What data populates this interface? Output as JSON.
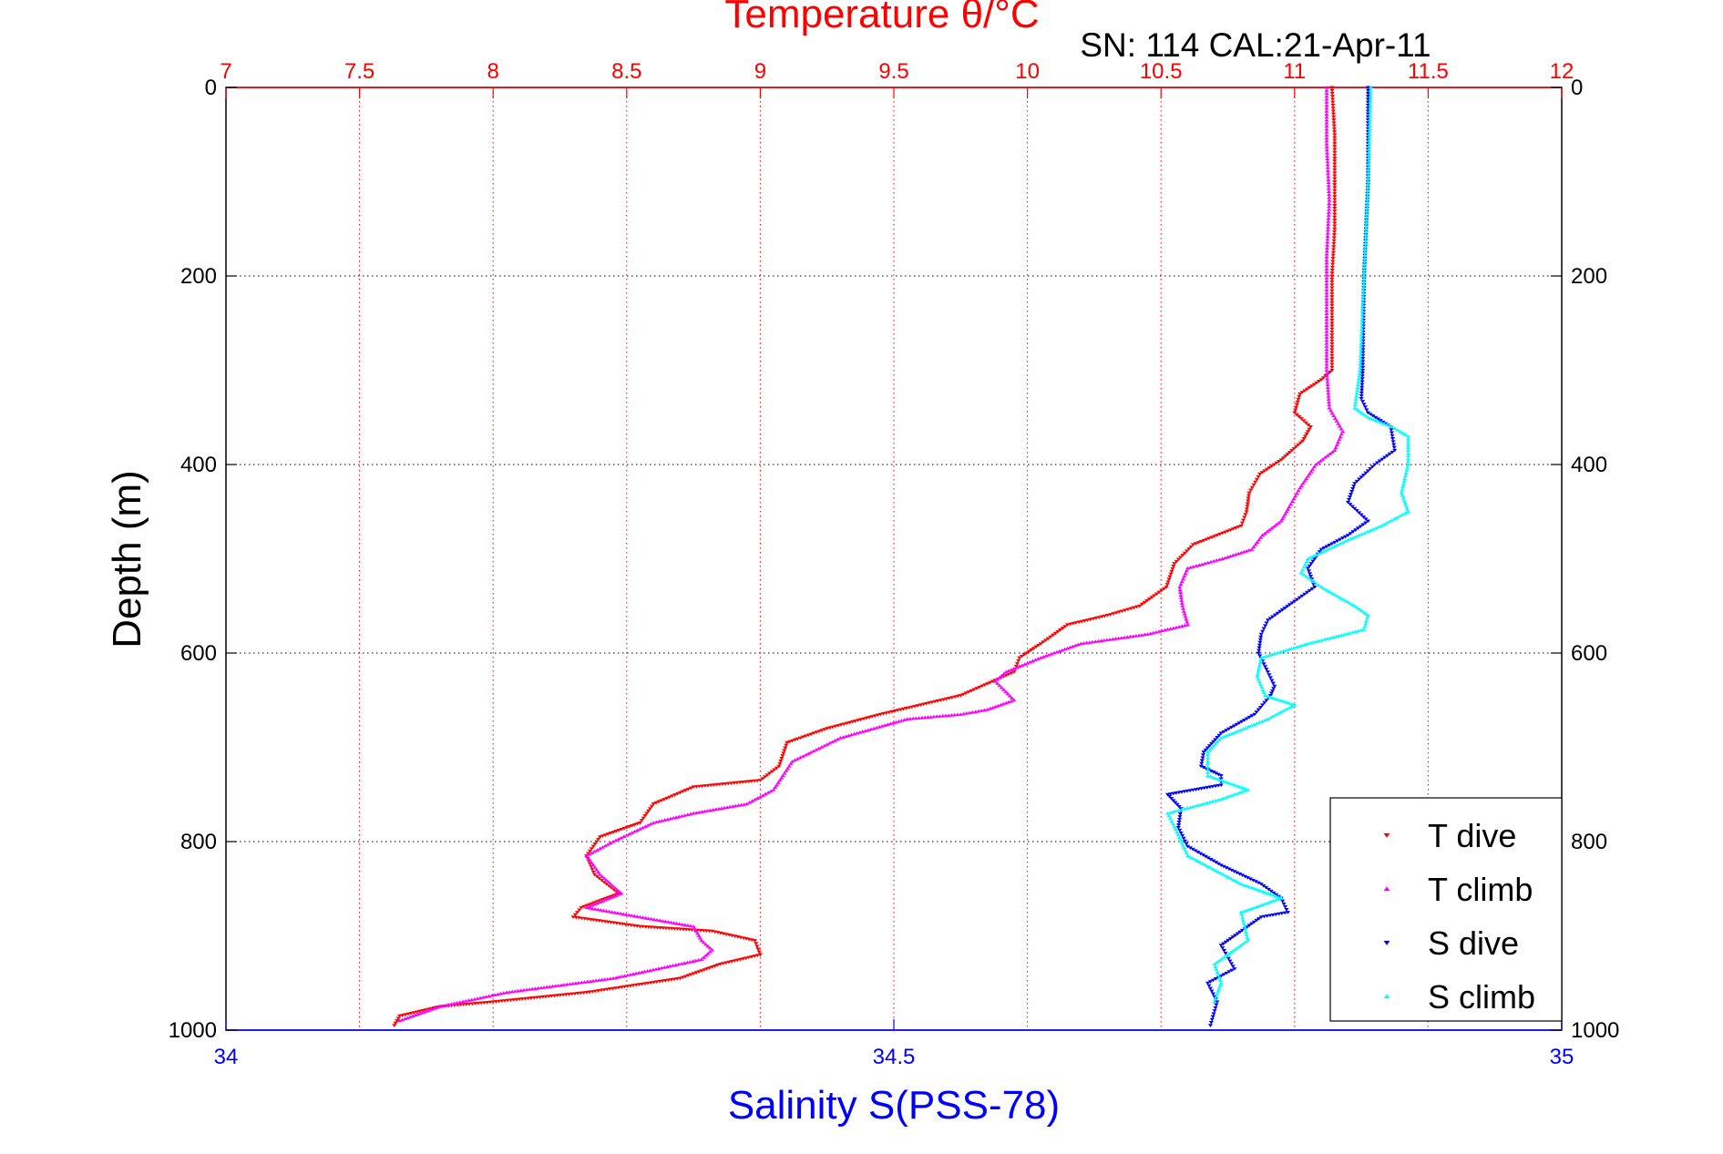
{
  "chart_data": {
    "type": "scatter",
    "title": "Temperature θ/°C",
    "subtitle": "SN: 114  CAL:21-Apr-11",
    "ylabel": "Depth (m)",
    "xlabel": "Salinity S(PSS-78)",
    "grid": true,
    "legend_position": "bottom-right",
    "y_axis": {
      "reversed": true,
      "ylim": [
        0,
        1000
      ],
      "ticks": [
        0,
        200,
        400,
        600,
        800,
        1000
      ],
      "tick_labels": [
        "0",
        "200",
        "400",
        "600",
        "800",
        "1000"
      ]
    },
    "temperature_axis": {
      "position": "top",
      "color": "#ff0000",
      "xlim": [
        7,
        12
      ],
      "ticks": [
        7,
        7.5,
        8,
        8.5,
        9,
        9.5,
        10,
        10.5,
        11,
        11.5,
        12
      ],
      "tick_labels": [
        "7",
        "7.5",
        "8",
        "8.5",
        "9",
        "9.5",
        "10",
        "10.5",
        "11",
        "11.5",
        "12"
      ]
    },
    "salinity_axis": {
      "position": "bottom",
      "color": "#0000ff",
      "xlim": [
        34,
        35
      ],
      "ticks": [
        34,
        34.5,
        35
      ],
      "tick_labels": [
        "34",
        "34.5",
        "35"
      ]
    },
    "series": [
      {
        "name": "T dive",
        "axis": "temperature",
        "color": "#ff0000",
        "marker": "triangle-down",
        "points": [
          [
            11.14,
            0
          ],
          [
            11.15,
            50
          ],
          [
            11.15,
            100
          ],
          [
            11.15,
            150
          ],
          [
            11.14,
            200
          ],
          [
            11.14,
            250
          ],
          [
            11.14,
            300
          ],
          [
            11.1,
            310
          ],
          [
            11.02,
            325
          ],
          [
            11.0,
            345
          ],
          [
            11.06,
            360
          ],
          [
            11.03,
            375
          ],
          [
            10.95,
            395
          ],
          [
            10.87,
            410
          ],
          [
            10.83,
            430
          ],
          [
            10.82,
            450
          ],
          [
            10.8,
            465
          ],
          [
            10.62,
            485
          ],
          [
            10.55,
            505
          ],
          [
            10.52,
            530
          ],
          [
            10.42,
            550
          ],
          [
            10.3,
            560
          ],
          [
            10.15,
            570
          ],
          [
            10.05,
            590
          ],
          [
            9.97,
            605
          ],
          [
            9.95,
            620
          ],
          [
            9.75,
            645
          ],
          [
            9.45,
            665
          ],
          [
            9.25,
            680
          ],
          [
            9.1,
            695
          ],
          [
            9.07,
            720
          ],
          [
            9.0,
            735
          ],
          [
            8.75,
            742
          ],
          [
            8.6,
            760
          ],
          [
            8.55,
            780
          ],
          [
            8.4,
            795
          ],
          [
            8.35,
            815
          ],
          [
            8.38,
            835
          ],
          [
            8.47,
            855
          ],
          [
            8.33,
            870
          ],
          [
            8.3,
            880
          ],
          [
            8.55,
            890
          ],
          [
            8.82,
            895
          ],
          [
            8.98,
            905
          ],
          [
            9.0,
            920
          ],
          [
            8.85,
            930
          ],
          [
            8.7,
            945
          ],
          [
            8.35,
            960
          ],
          [
            8.0,
            970
          ],
          [
            7.8,
            975
          ],
          [
            7.65,
            985
          ],
          [
            7.63,
            995
          ]
        ]
      },
      {
        "name": "T climb",
        "axis": "temperature",
        "color": "#ff00ff",
        "marker": "triangle-up",
        "points": [
          [
            11.12,
            0
          ],
          [
            11.12,
            60
          ],
          [
            11.13,
            120
          ],
          [
            11.12,
            180
          ],
          [
            11.12,
            240
          ],
          [
            11.12,
            300
          ],
          [
            11.13,
            340
          ],
          [
            11.18,
            365
          ],
          [
            11.15,
            385
          ],
          [
            11.08,
            400
          ],
          [
            11.02,
            425
          ],
          [
            10.98,
            445
          ],
          [
            10.95,
            460
          ],
          [
            10.88,
            475
          ],
          [
            10.84,
            490
          ],
          [
            10.73,
            500
          ],
          [
            10.6,
            510
          ],
          [
            10.57,
            530
          ],
          [
            10.58,
            550
          ],
          [
            10.6,
            570
          ],
          [
            10.45,
            580
          ],
          [
            10.2,
            590
          ],
          [
            10.05,
            605
          ],
          [
            9.92,
            620
          ],
          [
            9.88,
            630
          ],
          [
            9.95,
            650
          ],
          [
            9.85,
            660
          ],
          [
            9.75,
            665
          ],
          [
            9.55,
            670
          ],
          [
            9.3,
            690
          ],
          [
            9.12,
            715
          ],
          [
            9.05,
            745
          ],
          [
            8.95,
            760
          ],
          [
            8.75,
            770
          ],
          [
            8.6,
            780
          ],
          [
            8.45,
            800
          ],
          [
            8.35,
            815
          ],
          [
            8.4,
            835
          ],
          [
            8.48,
            855
          ],
          [
            8.35,
            870
          ],
          [
            8.55,
            880
          ],
          [
            8.75,
            890
          ],
          [
            8.78,
            905
          ],
          [
            8.82,
            915
          ],
          [
            8.78,
            925
          ],
          [
            8.45,
            945
          ],
          [
            8.05,
            960
          ],
          [
            7.8,
            975
          ],
          [
            7.65,
            990
          ]
        ]
      },
      {
        "name": "S dive",
        "axis": "salinity",
        "color": "#0000ff",
        "marker": "triangle-down",
        "points": [
          [
            34.855,
            0
          ],
          [
            34.855,
            100
          ],
          [
            34.852,
            200
          ],
          [
            34.851,
            300
          ],
          [
            34.85,
            330
          ],
          [
            34.855,
            345
          ],
          [
            34.872,
            360
          ],
          [
            34.875,
            385
          ],
          [
            34.86,
            400
          ],
          [
            34.845,
            420
          ],
          [
            34.84,
            440
          ],
          [
            34.855,
            460
          ],
          [
            34.84,
            475
          ],
          [
            34.82,
            490
          ],
          [
            34.81,
            510
          ],
          [
            34.815,
            530
          ],
          [
            34.8,
            545
          ],
          [
            34.78,
            565
          ],
          [
            34.775,
            580
          ],
          [
            34.773,
            600
          ],
          [
            34.78,
            620
          ],
          [
            34.785,
            635
          ],
          [
            34.782,
            645
          ],
          [
            34.776,
            655
          ],
          [
            34.77,
            665
          ],
          [
            34.745,
            685
          ],
          [
            34.732,
            705
          ],
          [
            34.73,
            720
          ],
          [
            34.745,
            730
          ],
          [
            34.745,
            740
          ],
          [
            34.705,
            750
          ],
          [
            34.715,
            765
          ],
          [
            34.713,
            785
          ],
          [
            34.72,
            805
          ],
          [
            34.745,
            825
          ],
          [
            34.775,
            845
          ],
          [
            34.79,
            860
          ],
          [
            34.795,
            875
          ],
          [
            34.775,
            880
          ],
          [
            34.745,
            910
          ],
          [
            34.755,
            935
          ],
          [
            34.735,
            950
          ],
          [
            34.742,
            970
          ],
          [
            34.737,
            995
          ]
        ]
      },
      {
        "name": "S climb",
        "axis": "salinity",
        "color": "#00ffff",
        "marker": "triangle-up",
        "points": [
          [
            34.857,
            0
          ],
          [
            34.855,
            100
          ],
          [
            34.852,
            200
          ],
          [
            34.849,
            300
          ],
          [
            34.845,
            340
          ],
          [
            34.855,
            350
          ],
          [
            34.873,
            360
          ],
          [
            34.885,
            370
          ],
          [
            34.885,
            400
          ],
          [
            34.88,
            430
          ],
          [
            34.885,
            450
          ],
          [
            34.865,
            465
          ],
          [
            34.84,
            480
          ],
          [
            34.81,
            500
          ],
          [
            34.805,
            515
          ],
          [
            34.82,
            530
          ],
          [
            34.845,
            550
          ],
          [
            34.855,
            560
          ],
          [
            34.852,
            575
          ],
          [
            34.81,
            590
          ],
          [
            34.775,
            605
          ],
          [
            34.772,
            625
          ],
          [
            34.778,
            645
          ],
          [
            34.8,
            655
          ],
          [
            34.78,
            670
          ],
          [
            34.745,
            690
          ],
          [
            34.735,
            705
          ],
          [
            34.735,
            730
          ],
          [
            34.765,
            745
          ],
          [
            34.745,
            755
          ],
          [
            34.705,
            770
          ],
          [
            34.712,
            790
          ],
          [
            34.72,
            815
          ],
          [
            34.76,
            845
          ],
          [
            34.79,
            860
          ],
          [
            34.76,
            875
          ],
          [
            34.765,
            905
          ],
          [
            34.74,
            930
          ],
          [
            34.745,
            950
          ],
          [
            34.74,
            970
          ]
        ]
      }
    ]
  }
}
